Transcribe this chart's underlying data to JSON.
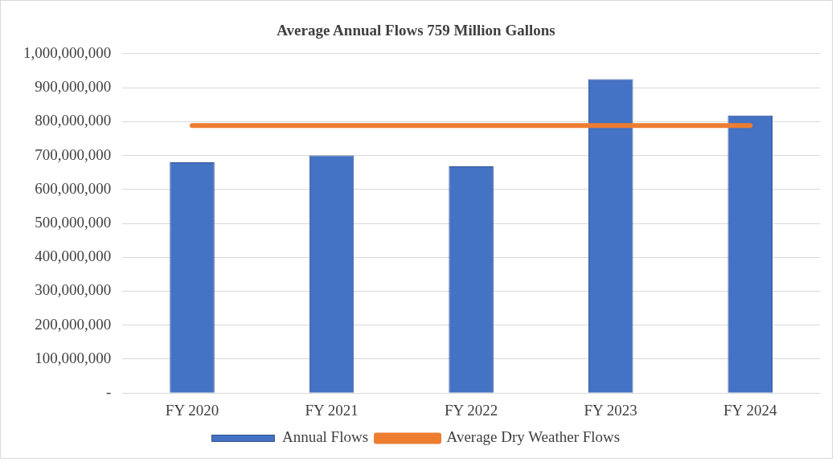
{
  "chart_data": {
    "type": "bar",
    "title": "Average Annual Flows 759 Million Gallons",
    "categories": [
      "FY 2020",
      "FY 2021",
      "FY 2022",
      "FY 2023",
      "FY 2024"
    ],
    "series": [
      {
        "name": "Annual Flows",
        "color": "#4472c4",
        "values": [
          680000000,
          700000000,
          668000000,
          925000000,
          818000000
        ]
      },
      {
        "name": "Average Dry Weather Flows",
        "type": "line",
        "color": "#ed7d31",
        "values": [
          788000000,
          788000000,
          788000000,
          788000000,
          788000000
        ]
      }
    ],
    "ylim": [
      0,
      1000000000
    ],
    "yticks": [
      {
        "value": 0,
        "label": "-"
      },
      {
        "value": 100000000,
        "label": "100,000,000"
      },
      {
        "value": 200000000,
        "label": "200,000,000"
      },
      {
        "value": 300000000,
        "label": "300,000,000"
      },
      {
        "value": 400000000,
        "label": "400,000,000"
      },
      {
        "value": 500000000,
        "label": "500,000,000"
      },
      {
        "value": 600000000,
        "label": "600,000,000"
      },
      {
        "value": 700000000,
        "label": "700,000,000"
      },
      {
        "value": 800000000,
        "label": "800,000,000"
      },
      {
        "value": 900000000,
        "label": "900,000,000"
      },
      {
        "value": 1000000000,
        "label": "1,000,000,000"
      }
    ],
    "grid": "y",
    "legend": "bottom",
    "marker": "none",
    "line_style": "solid"
  }
}
